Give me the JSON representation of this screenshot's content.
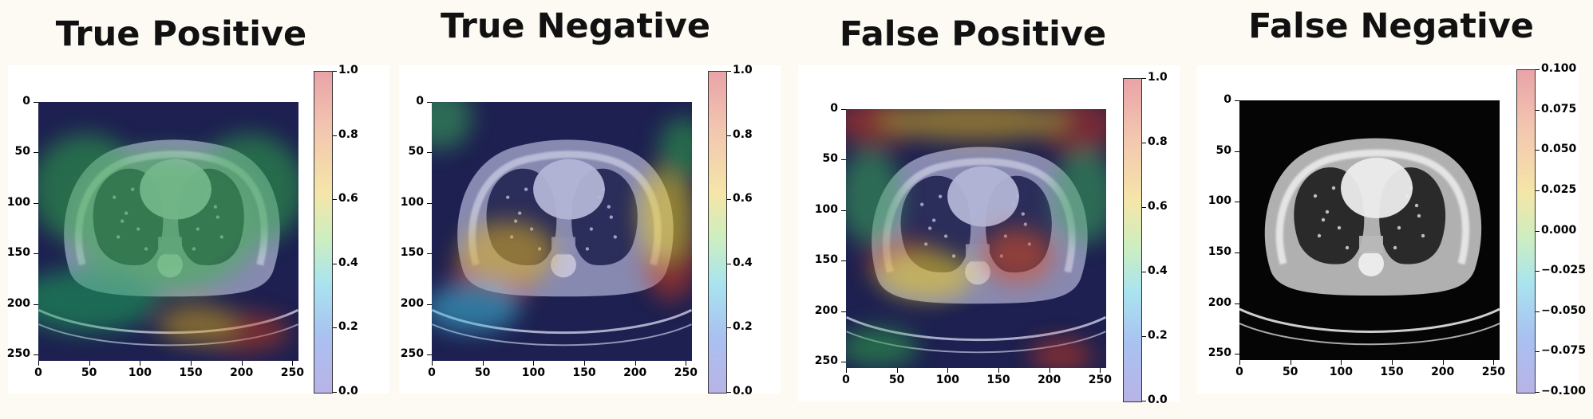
{
  "panels": [
    {
      "title": "True Positive",
      "x_ticks": [
        "0",
        "50",
        "100",
        "150",
        "200",
        "250"
      ],
      "y_ticks": [
        "0",
        "50",
        "100",
        "150",
        "200",
        "250"
      ],
      "colorbar_ticks": [
        "1.0",
        "0.8",
        "0.6",
        "0.4",
        "0.2",
        "0.0"
      ],
      "heatmap_colormap": "jet",
      "image": "ct-lung-scan-with-gradcam-overlay"
    },
    {
      "title": "True Negative",
      "x_ticks": [
        "0",
        "50",
        "100",
        "150",
        "200",
        "250"
      ],
      "y_ticks": [
        "0",
        "50",
        "100",
        "150",
        "200",
        "250"
      ],
      "colorbar_ticks": [
        "1.0",
        "0.8",
        "0.6",
        "0.4",
        "0.2",
        "0.0"
      ],
      "heatmap_colormap": "jet",
      "image": "ct-lung-scan-with-gradcam-overlay"
    },
    {
      "title": "False Positive",
      "x_ticks": [
        "0",
        "50",
        "100",
        "150",
        "200",
        "250"
      ],
      "y_ticks": [
        "0",
        "50",
        "100",
        "150",
        "200",
        "250"
      ],
      "colorbar_ticks": [
        "1.0",
        "0.8",
        "0.6",
        "0.4",
        "0.2",
        "0.0"
      ],
      "heatmap_colormap": "jet",
      "image": "ct-lung-scan-with-gradcam-overlay"
    },
    {
      "title": "False Negative",
      "x_ticks": [
        "0",
        "50",
        "100",
        "150",
        "200",
        "250"
      ],
      "y_ticks": [
        "0",
        "50",
        "100",
        "150",
        "200",
        "250"
      ],
      "colorbar_ticks": [
        "0.100",
        "0.075",
        "0.050",
        "0.025",
        "0.000",
        "−0.025",
        "−0.050",
        "−0.075",
        "−0.100"
      ],
      "heatmap_colormap": "jet",
      "image": "ct-lung-scan-grayscale-no-overlay"
    }
  ]
}
